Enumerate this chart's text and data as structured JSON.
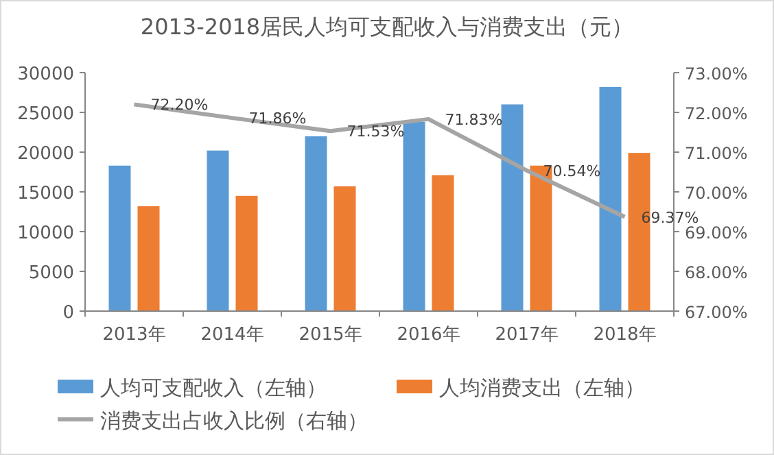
{
  "chart_data": {
    "type": "bar",
    "title": "2013-2018居民人均可支配收入与消费支出（元）",
    "categories": [
      "2013年",
      "2014年",
      "2015年",
      "2016年",
      "2017年",
      "2018年"
    ],
    "series": [
      {
        "name": "人均可支配收入（左轴）",
        "color": "#5b9bd5",
        "values": [
          18300,
          20200,
          22000,
          23800,
          26000,
          28200
        ]
      },
      {
        "name": "人均消费支出（左轴）",
        "color": "#ed7d31",
        "values": [
          13200,
          14500,
          15700,
          17100,
          18300,
          19900
        ]
      },
      {
        "name": "消费支出占收入比例（右轴）",
        "type": "line",
        "axis": "y2",
        "color": "#a5a5a5",
        "values": [
          72.2,
          71.86,
          71.53,
          71.83,
          70.54,
          69.37
        ],
        "value_labels": [
          "72.20%",
          "71.86%",
          "71.53%",
          "71.83%",
          "70.54%",
          "69.37%"
        ]
      }
    ],
    "ylim": [
      0,
      30000
    ],
    "yticks": [
      0,
      5000,
      10000,
      15000,
      20000,
      25000,
      30000
    ],
    "y2lim": [
      67,
      73
    ],
    "y2ticks": [
      {
        "value": 67,
        "label": "67.00%"
      },
      {
        "value": 68,
        "label": "68.00%"
      },
      {
        "value": 69,
        "label": "69.00%"
      },
      {
        "value": 70,
        "label": "70.00%"
      },
      {
        "value": 71,
        "label": "71.00%"
      },
      {
        "value": 72,
        "label": "72.00%"
      },
      {
        "value": 73,
        "label": "73.00%"
      }
    ],
    "legend": "bottom"
  }
}
